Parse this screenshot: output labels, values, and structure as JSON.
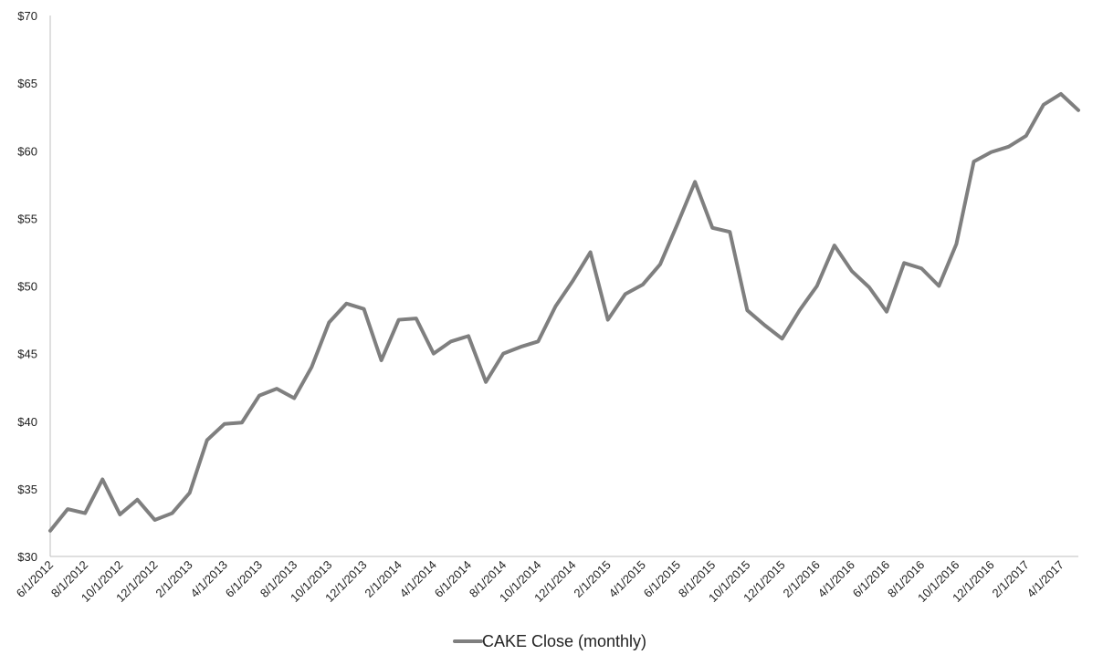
{
  "chart_data": {
    "type": "line",
    "title": "",
    "xlabel": "",
    "ylabel": "",
    "ylim": [
      30,
      70
    ],
    "yticks": [
      "$30",
      "$35",
      "$40",
      "$45",
      "$50",
      "$55",
      "$60",
      "$65",
      "$70"
    ],
    "grid": false,
    "legend_position": "bottom",
    "line_color": "#7f7f7f",
    "x": [
      "6/1/2012",
      "7/1/2012",
      "8/1/2012",
      "9/1/2012",
      "10/1/2012",
      "11/1/2012",
      "12/1/2012",
      "1/1/2013",
      "2/1/2013",
      "3/1/2013",
      "4/1/2013",
      "5/1/2013",
      "6/1/2013",
      "7/1/2013",
      "8/1/2013",
      "9/1/2013",
      "10/1/2013",
      "11/1/2013",
      "12/1/2013",
      "1/1/2014",
      "2/1/2014",
      "3/1/2014",
      "4/1/2014",
      "5/1/2014",
      "6/1/2014",
      "7/1/2014",
      "8/1/2014",
      "9/1/2014",
      "10/1/2014",
      "11/1/2014",
      "12/1/2014",
      "1/1/2015",
      "2/1/2015",
      "3/1/2015",
      "4/1/2015",
      "5/1/2015",
      "6/1/2015",
      "7/1/2015",
      "8/1/2015",
      "9/1/2015",
      "10/1/2015",
      "11/1/2015",
      "12/1/2015",
      "1/1/2016",
      "2/1/2016",
      "3/1/2016",
      "4/1/2016",
      "5/1/2016",
      "6/1/2016",
      "7/1/2016",
      "8/1/2016",
      "9/1/2016",
      "10/1/2016",
      "11/1/2016",
      "12/1/2016",
      "1/1/2017",
      "2/1/2017",
      "3/1/2017",
      "4/1/2017",
      "5/1/2017"
    ],
    "xtick_labels": [
      "6/1/2012",
      "8/1/2012",
      "10/1/2012",
      "12/1/2012",
      "2/1/2013",
      "4/1/2013",
      "6/1/2013",
      "8/1/2013",
      "10/1/2013",
      "12/1/2013",
      "2/1/2014",
      "4/1/2014",
      "6/1/2014",
      "8/1/2014",
      "10/1/2014",
      "12/1/2014",
      "2/1/2015",
      "4/1/2015",
      "6/1/2015",
      "8/1/2015",
      "10/1/2015",
      "12/1/2015",
      "2/1/2016",
      "4/1/2016",
      "6/1/2016",
      "8/1/2016",
      "10/1/2016",
      "12/1/2016",
      "2/1/2017",
      "4/1/2017"
    ],
    "series": [
      {
        "name": "CAKE Close (monthly)",
        "values": [
          31.9,
          33.5,
          33.2,
          35.7,
          33.1,
          34.2,
          32.7,
          33.2,
          34.7,
          38.6,
          39.8,
          39.9,
          41.9,
          42.4,
          41.7,
          44.0,
          47.3,
          48.7,
          48.3,
          44.5,
          47.5,
          47.6,
          45.0,
          45.9,
          46.3,
          42.9,
          45.0,
          45.5,
          45.9,
          48.5,
          50.4,
          52.5,
          47.5,
          49.4,
          50.1,
          51.6,
          54.6,
          57.7,
          54.3,
          54.0,
          48.2,
          47.1,
          46.1,
          48.2,
          50.0,
          53.0,
          51.1,
          49.9,
          48.1,
          51.7,
          51.3,
          50.0,
          53.1,
          59.2,
          59.9,
          60.3,
          61.1,
          63.4,
          64.2,
          63.0
        ]
      }
    ]
  }
}
